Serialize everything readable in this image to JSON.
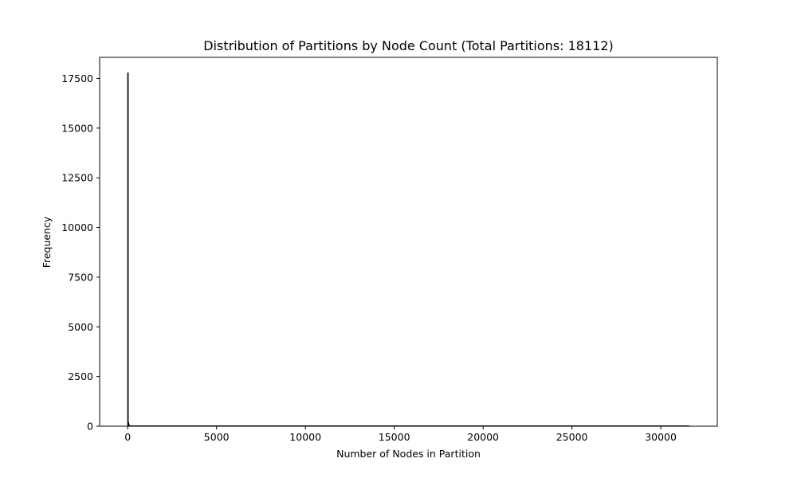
{
  "chart_data": {
    "type": "bar",
    "title": "Distribution of Partitions by Node Count (Total Partitions: 18112)",
    "xlabel": "Number of Nodes in Partition",
    "ylabel": "Frequency",
    "xlim": [
      -1580,
      33180
    ],
    "ylim": [
      0,
      18560
    ],
    "x_ticks": [
      0,
      5000,
      10000,
      15000,
      20000,
      25000,
      30000
    ],
    "y_ticks": [
      0,
      2500,
      5000,
      7500,
      10000,
      12500,
      15000,
      17500
    ],
    "bin_width": 30,
    "bars": [
      {
        "x": 0,
        "value": 17780
      },
      {
        "x": 30,
        "value": 180
      },
      {
        "x": 60,
        "value": 60
      },
      {
        "x": 90,
        "value": 30
      },
      {
        "x": 120,
        "value": 15
      }
    ],
    "tail": {
      "x_start": 150,
      "x_end": 31600,
      "value": 3
    },
    "grid": false,
    "legend": "none",
    "colors": {
      "bar_edge": "#000000",
      "bar_fill": "#1f77b4",
      "axes": "#000000"
    }
  }
}
